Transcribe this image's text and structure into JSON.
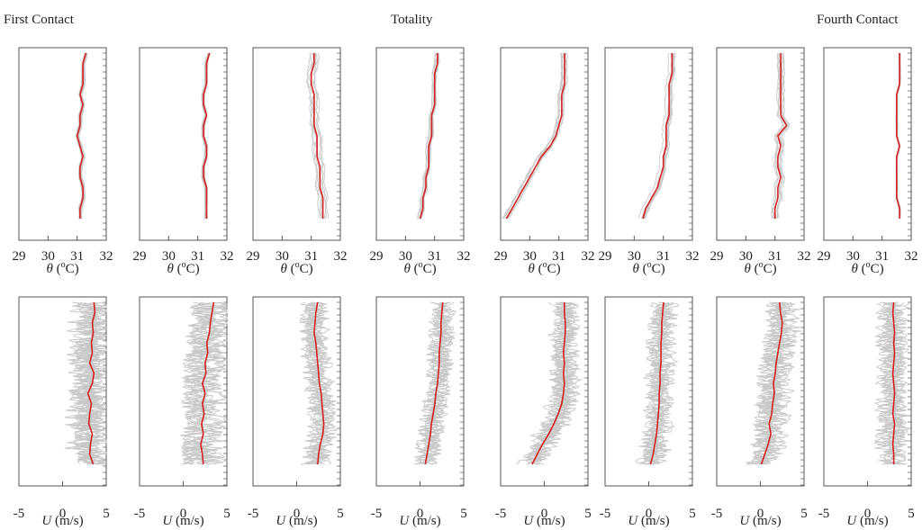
{
  "phases": [
    "First Contact",
    "Totality",
    "Fourth Contact"
  ],
  "colors": {
    "mean": "#d42020",
    "individual": "#c8c8c8",
    "frame": "#555555"
  },
  "chart_data": [
    {
      "type": "line",
      "row": "theta",
      "xlabel_symbol": "θ",
      "xlabel_unit": " (°C)",
      "xlabel_display": "θ (oC)",
      "xlim": [
        29,
        32
      ],
      "xticks": [
        "29",
        "30",
        "31",
        "32"
      ],
      "ylim": [
        0,
        1
      ],
      "grid": false,
      "panels": [
        {
          "mean_x": [
            31.1,
            31.1,
            31.2,
            31.2,
            31.1,
            31.1,
            31.2,
            31.1,
            31.0,
            31.1,
            31.1,
            31.2,
            31.1,
            31.2,
            31.2,
            31.2,
            31.3
          ],
          "spread": 0.15
        },
        {
          "mean_x": [
            31.3,
            31.3,
            31.3,
            31.3,
            31.2,
            31.2,
            31.3,
            31.3,
            31.2,
            31.2,
            31.3,
            31.2,
            31.2,
            31.3,
            31.3,
            31.3,
            31.4
          ],
          "spread": 0.12
        },
        {
          "mean_x": [
            31.4,
            31.4,
            31.4,
            31.3,
            31.3,
            31.3,
            31.2,
            31.2,
            31.2,
            31.1,
            31.1,
            31.1,
            31.1,
            31.0,
            31.0,
            31.1,
            31.1
          ],
          "spread": 0.35
        },
        {
          "mean_x": [
            30.5,
            30.6,
            30.6,
            30.7,
            30.7,
            30.8,
            30.8,
            30.8,
            30.9,
            30.9,
            30.9,
            31.0,
            31.0,
            31.0,
            31.0,
            31.1,
            31.1
          ],
          "spread": 0.18
        },
        {
          "mean_x": [
            29.2,
            29.4,
            29.6,
            29.8,
            30.0,
            30.2,
            30.4,
            30.7,
            30.9,
            31.0,
            31.1,
            31.1,
            31.1,
            31.2,
            31.2,
            31.2,
            31.2
          ],
          "spread": 0.3
        },
        {
          "mean_x": [
            30.3,
            30.4,
            30.6,
            30.8,
            30.9,
            31.0,
            31.0,
            31.1,
            31.1,
            31.1,
            31.2,
            31.2,
            31.2,
            31.2,
            31.3,
            31.3,
            31.3
          ],
          "spread": 0.25
        },
        {
          "mean_x": [
            31.0,
            31.0,
            31.1,
            31.1,
            31.2,
            31.1,
            31.1,
            31.2,
            31.1,
            31.4,
            31.2,
            31.2,
            31.2,
            31.2,
            31.2,
            31.2,
            31.2
          ],
          "spread": 0.3
        },
        {
          "mean_x": [
            31.6,
            31.6,
            31.5,
            31.5,
            31.5,
            31.5,
            31.5,
            31.6,
            31.5,
            31.5,
            31.5,
            31.5,
            31.5,
            31.6,
            31.6,
            31.6,
            31.6
          ],
          "spread": 0.1
        }
      ]
    },
    {
      "type": "line",
      "row": "U",
      "xlabel_symbol": "U",
      "xlabel_unit": " (m/s)",
      "xlim": [
        -5,
        5
      ],
      "xticks": [
        "-5",
        "0",
        "5"
      ],
      "ylim": [
        0,
        1
      ],
      "grid": false,
      "panels": [
        {
          "mean_x": [
            3.5,
            3.1,
            3.2,
            3.4,
            3.0,
            3.1,
            3.3,
            2.9,
            3.4,
            3.6,
            3.1,
            3.4,
            3.3,
            3.5,
            3.4,
            3.7,
            3.6
          ],
          "spread": 2.8
        },
        {
          "mean_x": [
            2.3,
            2.2,
            2.0,
            2.3,
            2.1,
            2.4,
            2.2,
            2.5,
            2.2,
            2.6,
            2.5,
            2.8,
            2.7,
            3.0,
            3.1,
            3.3,
            3.5
          ],
          "spread": 2.6
        },
        {
          "mean_x": [
            2.4,
            2.5,
            2.7,
            3.0,
            3.1,
            3.0,
            2.9,
            2.8,
            2.6,
            2.5,
            2.4,
            2.3,
            2.2,
            2.0,
            2.1,
            2.2,
            2.4
          ],
          "spread": 1.8
        },
        {
          "mean_x": [
            0.6,
            0.8,
            1.0,
            1.2,
            1.3,
            1.5,
            1.7,
            1.8,
            2.0,
            2.1,
            2.2,
            2.2,
            2.3,
            2.4,
            2.4,
            2.5,
            2.6
          ],
          "spread": 1.6
        },
        {
          "mean_x": [
            -1.4,
            -0.8,
            -0.2,
            0.5,
            1.1,
            1.6,
            2.0,
            2.2,
            2.3,
            2.2,
            2.3,
            2.2,
            2.3,
            2.4,
            2.4,
            2.3,
            2.3
          ],
          "spread": 2.0
        },
        {
          "mean_x": [
            0.2,
            0.5,
            0.7,
            0.9,
            1.0,
            1.1,
            1.2,
            1.2,
            1.3,
            1.3,
            1.4,
            1.4,
            1.4,
            1.5,
            1.5,
            1.6,
            1.7
          ],
          "spread": 2.0
        },
        {
          "mean_x": [
            0.1,
            0.5,
            0.9,
            1.2,
            1.0,
            1.3,
            1.4,
            1.6,
            1.5,
            1.7,
            1.8,
            2.0,
            2.2,
            2.4,
            2.5,
            2.3,
            2.2
          ],
          "spread": 2.3
        },
        {
          "mean_x": [
            3.0,
            3.0,
            2.9,
            3.0,
            3.1,
            2.9,
            3.0,
            3.1,
            3.0,
            2.9,
            3.0,
            3.1,
            3.0,
            3.1,
            3.0,
            2.9,
            3.0
          ],
          "spread": 2.0
        }
      ]
    }
  ]
}
